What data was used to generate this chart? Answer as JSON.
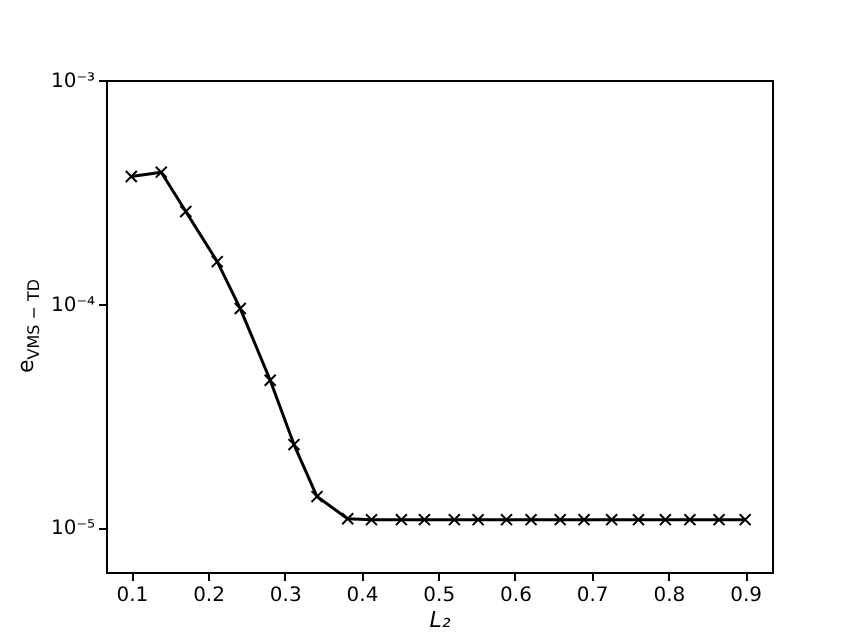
{
  "chart_data": {
    "type": "line",
    "xlabel": "L₂",
    "ylabel": "e$_{VMS − TD}$",
    "x": [
      0.1,
      0.139,
      0.171,
      0.212,
      0.242,
      0.281,
      0.312,
      0.342,
      0.382,
      0.413,
      0.452,
      0.482,
      0.521,
      0.552,
      0.589,
      0.621,
      0.659,
      0.69,
      0.726,
      0.761,
      0.796,
      0.828,
      0.866,
      0.9
    ],
    "series": [
      {
        "color": "#000000",
        "values": [
          0.00037,
          0.000387,
          0.000258,
          0.000154,
          9.5e-05,
          4.54e-05,
          2.34e-05,
          1.37e-05,
          1.09e-05,
          1.08e-05,
          1.08e-05,
          1.08e-05,
          1.08e-05,
          1.08e-05,
          1.08e-05,
          1.08e-05,
          1.08e-05,
          1.08e-05,
          1.08e-05,
          1.08e-05,
          1.08e-05,
          1.08e-05,
          1.08e-05,
          1.08e-05
        ]
      }
    ],
    "xlim": [
      0.067,
      0.935
    ],
    "xticks": [
      0.1,
      0.2,
      0.3,
      0.4,
      0.5,
      0.6,
      0.7,
      0.8,
      0.9
    ],
    "ylim": [
      6.3e-06,
      0.001
    ],
    "yticks": [
      {
        "value": 1e-05,
        "label": "10⁻⁵"
      },
      {
        "value": 0.0001,
        "label": "10⁻⁴"
      },
      {
        "value": 0.001,
        "label": "10⁻³"
      }
    ],
    "log": "y",
    "grid": false,
    "marker": "cross",
    "line_style": "solid"
  }
}
